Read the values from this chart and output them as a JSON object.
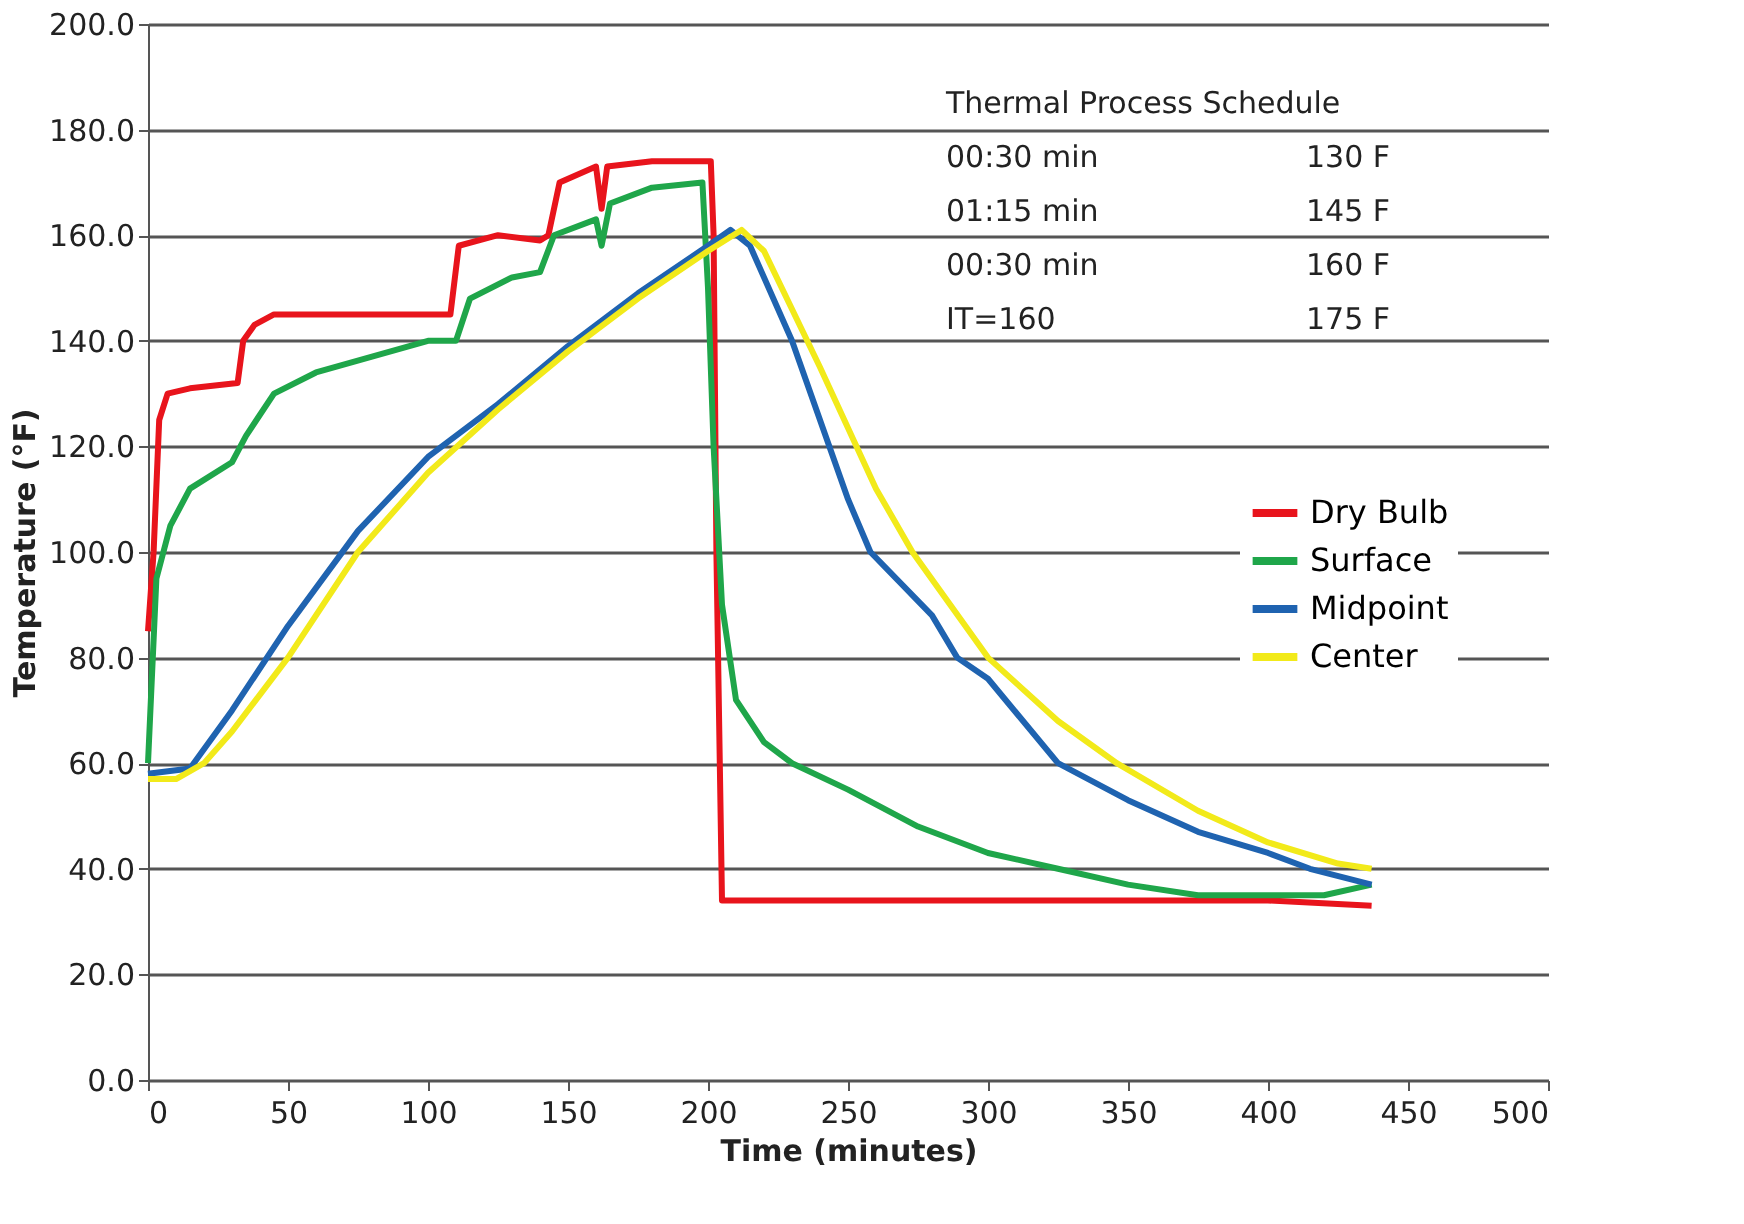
{
  "chart_data": {
    "type": "line",
    "xlabel": "Time (minutes)",
    "ylabel": "Temperature (°F)",
    "xlim": [
      0,
      500
    ],
    "xticks": [
      0,
      50,
      100,
      150,
      200,
      250,
      300,
      350,
      400,
      450,
      500
    ],
    "ylim": [
      0,
      200
    ],
    "yticks": [
      {
        "value": 0,
        "label": "0.0"
      },
      {
        "value": 20,
        "label": "20.0"
      },
      {
        "value": 40,
        "label": "40.0"
      },
      {
        "value": 60,
        "label": "60.0"
      },
      {
        "value": 80,
        "label": "80.0"
      },
      {
        "value": 100,
        "label": "100.0"
      },
      {
        "value": 120,
        "label": "120.0"
      },
      {
        "value": 140,
        "label": "140.0"
      },
      {
        "value": 160,
        "label": "160.0"
      },
      {
        "value": 180,
        "label": "180.0"
      },
      {
        "value": 200,
        "label": "200.0"
      }
    ],
    "grid": "y",
    "legend": "right",
    "marker": "none",
    "line_style": "solid",
    "annotations": [
      "Thermal Process Schedule",
      "00:30 min",
      "130 F",
      "01:15 min",
      "145 F",
      "00:30 min",
      "160 F",
      "IT=160",
      "175 F"
    ],
    "series": [
      {
        "name": "Dry Bulb",
        "color": "#e8141c",
        "x": [
          0,
          2,
          4,
          7,
          15,
          32,
          34,
          38,
          45,
          80,
          108,
          111,
          125,
          140,
          143,
          147,
          160,
          162,
          164,
          180,
          201,
          202,
          203,
          205,
          250,
          300,
          350,
          400,
          437
        ],
        "values": [
          85,
          100,
          125,
          130,
          131,
          132,
          140,
          143,
          145,
          145,
          145,
          158,
          160,
          159,
          160,
          170,
          173,
          165,
          173,
          174,
          174,
          160,
          100,
          34,
          34,
          34,
          34,
          34,
          33
        ]
      },
      {
        "name": "Surface",
        "color": "#1fa64a",
        "x": [
          0,
          3,
          8,
          15,
          30,
          35,
          45,
          60,
          80,
          100,
          110,
          115,
          130,
          140,
          145,
          160,
          162,
          165,
          180,
          198,
          200,
          202,
          205,
          210,
          220,
          230,
          250,
          275,
          300,
          325,
          350,
          375,
          400,
          420,
          437
        ],
        "values": [
          60,
          95,
          105,
          112,
          117,
          122,
          130,
          134,
          137,
          140,
          140,
          148,
          152,
          153,
          160,
          163,
          158,
          166,
          169,
          170,
          150,
          120,
          90,
          72,
          64,
          60,
          55,
          48,
          43,
          40,
          37,
          35,
          35,
          35,
          37
        ]
      },
      {
        "name": "Midpoint",
        "color": "#1f63b0",
        "x": [
          0,
          15,
          30,
          50,
          75,
          100,
          125,
          150,
          175,
          200,
          208,
          215,
          230,
          250,
          258,
          280,
          289,
          300,
          325,
          350,
          375,
          400,
          415,
          437
        ],
        "values": [
          58,
          59,
          70,
          86,
          104,
          118,
          128,
          139,
          149,
          158,
          161,
          158,
          140,
          110,
          100,
          88,
          80,
          76,
          60,
          53,
          47,
          43,
          40,
          37
        ]
      },
      {
        "name": "Center",
        "color": "#f2ea1a",
        "x": [
          0,
          10,
          20,
          30,
          50,
          75,
          100,
          125,
          150,
          175,
          200,
          212,
          220,
          240,
          260,
          273,
          300,
          325,
          346,
          375,
          400,
          425,
          437
        ],
        "values": [
          57,
          57,
          60,
          66,
          80,
          100,
          115,
          127,
          138,
          148,
          157,
          161,
          157,
          135,
          112,
          100,
          80,
          68,
          60,
          51,
          45,
          41,
          40
        ]
      }
    ]
  }
}
